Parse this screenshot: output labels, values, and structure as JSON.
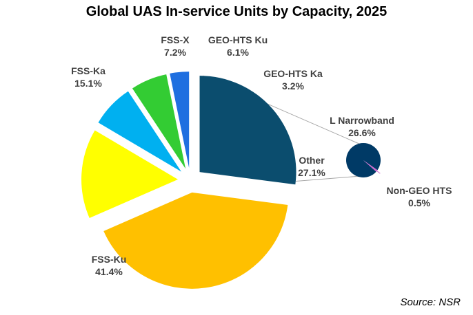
{
  "chart_data": {
    "type": "pie",
    "title": "Global UAS In-service Units by Capacity, 2025",
    "source": "Source: NSR",
    "slices": [
      {
        "label": "FSS-Ku",
        "value": 41.4,
        "display": "41.4%",
        "color": "#FFC000"
      },
      {
        "label": "FSS-Ka",
        "value": 15.1,
        "display": "15.1%",
        "color": "#FFFF00"
      },
      {
        "label": "FSS-X",
        "value": 7.2,
        "display": "7.2%",
        "color": "#00B0F0"
      },
      {
        "label": "GEO-HTS Ku",
        "value": 6.1,
        "display": "6.1%",
        "color": "#33CC33"
      },
      {
        "label": "GEO-HTS Ka",
        "value": 3.2,
        "display": "3.2%",
        "color": "#1F6FE0"
      },
      {
        "label": "Other",
        "value": 27.1,
        "display": "27.1%",
        "color": "#0B4D6E"
      }
    ],
    "breakdown": {
      "of": "Other",
      "slices": [
        {
          "label": "L Narrowband",
          "value": 26.6,
          "display": "26.6%",
          "color": "#003A66"
        },
        {
          "label": "Non-GEO HTS",
          "value": 0.5,
          "display": "0.5%",
          "color": "#CC66CC"
        }
      ]
    }
  }
}
